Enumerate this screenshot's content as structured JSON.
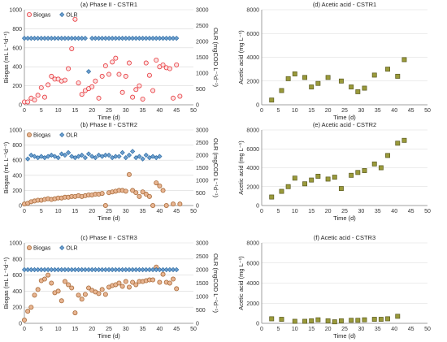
{
  "chart_data": [
    {
      "type": "scatter",
      "title": "(a) Phase II - CSTR1",
      "xlabel": "Time (d)",
      "ylabel": "Biogas (mL L⁻¹d⁻¹)",
      "y2label": "OLR (mgCOD L⁻¹d⁻¹)",
      "xlim": [
        0,
        50
      ],
      "ylim": [
        0,
        1000
      ],
      "y2lim": [
        0,
        3000
      ],
      "xticks": [
        0,
        5,
        10,
        15,
        20,
        25,
        30,
        35,
        40,
        45,
        50
      ],
      "yticks": [
        0,
        200,
        400,
        600,
        800,
        1000
      ],
      "y2ticks": [
        0,
        500,
        1000,
        1500,
        2000,
        2500,
        3000
      ],
      "legend": "top-left",
      "series": [
        {
          "name": "Biogas",
          "axis": "left",
          "marker": "circle",
          "color": "#e8383d",
          "fill": "#fbe1e1",
          "x": [
            0,
            1,
            2,
            3,
            4,
            5,
            6,
            7,
            8,
            9,
            10,
            11,
            12,
            13,
            14,
            15,
            16,
            17,
            18,
            19,
            20,
            21,
            22,
            23,
            24,
            25,
            26,
            27,
            28,
            29,
            30,
            31,
            32,
            33,
            34,
            35,
            36,
            37,
            38,
            39,
            40,
            41,
            42,
            43,
            44,
            45,
            46
          ],
          "y": [
            30,
            30,
            70,
            50,
            100,
            180,
            80,
            210,
            300,
            270,
            270,
            250,
            260,
            380,
            590,
            900,
            230,
            110,
            150,
            170,
            190,
            250,
            70,
            300,
            410,
            320,
            450,
            490,
            320,
            130,
            300,
            440,
            80,
            160,
            200,
            60,
            440,
            310,
            150,
            470,
            400,
            420,
            390,
            380,
            70,
            420,
            90
          ]
        },
        {
          "name": "OLR",
          "axis": "right",
          "marker": "diamond",
          "color": "#2e6da4",
          "fill": "#6fa0d0",
          "x": [
            0,
            1,
            2,
            3,
            4,
            5,
            6,
            7,
            8,
            9,
            10,
            11,
            12,
            13,
            14,
            15,
            16,
            17,
            18,
            19,
            20,
            21,
            22,
            23,
            24,
            25,
            26,
            27,
            28,
            29,
            30,
            31,
            32,
            33,
            34,
            35,
            36,
            37,
            38,
            39,
            40,
            41,
            42,
            43,
            44,
            45
          ],
          "y": [
            2100,
            2100,
            2100,
            2100,
            2100,
            2100,
            2100,
            2100,
            2100,
            2100,
            2100,
            2100,
            2100,
            2100,
            2100,
            2100,
            2100,
            2100,
            2100,
            1050,
            2100,
            2100,
            2100,
            2100,
            2100,
            2100,
            2100,
            2100,
            2100,
            2100,
            2100,
            2100,
            2100,
            2100,
            2100,
            2100,
            2100,
            2100,
            2100,
            2100,
            2100,
            2100,
            2100,
            2100,
            2100,
            2100
          ]
        }
      ]
    },
    {
      "type": "scatter",
      "title": "(d) Acetic acid - CSTR1",
      "xlabel": "Time (d)",
      "ylabel": "Acetic acid (mg L⁻¹)",
      "xlim": [
        0,
        50
      ],
      "ylim": [
        0,
        8000
      ],
      "xticks": [
        0,
        5,
        10,
        15,
        20,
        25,
        30,
        35,
        40,
        45,
        50
      ],
      "yticks": [
        0,
        2000,
        4000,
        6000,
        8000
      ],
      "series": [
        {
          "name": "",
          "marker": "square",
          "color": "#5a5a20",
          "fill": "#9a9a3a",
          "x": [
            3,
            6,
            8,
            10,
            13,
            15,
            17,
            20,
            24,
            27,
            29,
            31,
            34,
            38,
            41,
            43
          ],
          "y": [
            400,
            1200,
            2200,
            2600,
            2300,
            1500,
            1800,
            2300,
            2000,
            1500,
            1100,
            1400,
            2500,
            3000,
            2400,
            3800
          ]
        }
      ]
    },
    {
      "type": "scatter",
      "title": "(b) Phase II - CSTR2",
      "xlabel": "Time (d)",
      "ylabel": "Biogas (mL L⁻¹d⁻¹)",
      "y2label": "OLR (mgCOD L⁻¹d⁻¹)",
      "xlim": [
        0,
        50
      ],
      "ylim": [
        0,
        1000
      ],
      "y2lim": [
        0,
        3000
      ],
      "xticks": [
        0,
        5,
        10,
        15,
        20,
        25,
        30,
        35,
        40,
        45,
        50
      ],
      "yticks": [
        0,
        200,
        400,
        600,
        800,
        1000
      ],
      "y2ticks": [
        0,
        500,
        1000,
        1500,
        2000,
        2500,
        3000
      ],
      "legend": "top-left",
      "series": [
        {
          "name": "Biogas",
          "axis": "left",
          "marker": "circle",
          "color": "#a86b3a",
          "fill": "#e8b592",
          "x": [
            0,
            1,
            2,
            3,
            4,
            5,
            6,
            7,
            8,
            9,
            10,
            11,
            12,
            13,
            14,
            15,
            16,
            17,
            18,
            19,
            20,
            21,
            22,
            23,
            24,
            25,
            26,
            27,
            28,
            29,
            30,
            31,
            32,
            33,
            34,
            35,
            36,
            37,
            38,
            39,
            40,
            41,
            42,
            44,
            46
          ],
          "y": [
            20,
            30,
            50,
            60,
            70,
            70,
            80,
            90,
            80,
            90,
            100,
            100,
            110,
            110,
            120,
            120,
            130,
            120,
            130,
            140,
            140,
            150,
            150,
            160,
            0,
            170,
            180,
            190,
            200,
            200,
            190,
            410,
            200,
            170,
            120,
            180,
            150,
            120,
            0,
            300,
            260,
            200,
            0,
            20,
            20
          ]
        },
        {
          "name": "OLR",
          "axis": "right",
          "marker": "diamond",
          "color": "#2e6da4",
          "fill": "#6fa0d0",
          "x": [
            1,
            2,
            3,
            4,
            5,
            6,
            7,
            8,
            9,
            10,
            11,
            12,
            13,
            14,
            15,
            16,
            17,
            18,
            19,
            20,
            21,
            22,
            23,
            24,
            25,
            26,
            27,
            28,
            29,
            30,
            31,
            32,
            33,
            34,
            35,
            36,
            37,
            38,
            39,
            40
          ],
          "y": [
            1850,
            2000,
            1950,
            1900,
            1950,
            1900,
            1950,
            2000,
            1950,
            1900,
            2050,
            2000,
            2100,
            1950,
            1900,
            1950,
            2000,
            1900,
            2050,
            1950,
            1900,
            2000,
            1950,
            2000,
            2000,
            1900,
            1950,
            1950,
            2100,
            1900,
            2000,
            2150,
            1900,
            1950,
            1850,
            2000,
            1900,
            1950,
            1900,
            1950
          ]
        }
      ]
    },
    {
      "type": "scatter",
      "title": "(e) Acetic acid - CSTR2",
      "xlabel": "Time (d)",
      "ylabel": "Acetic acid (mg L⁻¹)",
      "xlim": [
        0,
        50
      ],
      "ylim": [
        0,
        8000
      ],
      "xticks": [
        0,
        5,
        10,
        15,
        20,
        25,
        30,
        35,
        40,
        45,
        50
      ],
      "yticks": [
        0,
        2000,
        4000,
        6000,
        8000
      ],
      "series": [
        {
          "name": "",
          "marker": "square",
          "color": "#5a5a20",
          "fill": "#9a9a3a",
          "x": [
            3,
            6,
            8,
            10,
            13,
            15,
            17,
            20,
            22,
            24,
            27,
            29,
            31,
            34,
            36,
            38,
            41,
            43
          ],
          "y": [
            900,
            1500,
            2000,
            2900,
            2300,
            2700,
            3100,
            2800,
            3000,
            1800,
            3200,
            3500,
            3700,
            4400,
            4000,
            5300,
            6600,
            6900
          ]
        }
      ]
    },
    {
      "type": "scatter",
      "title": "(c) Phase II - CSTR3",
      "xlabel": "Time (d)",
      "ylabel": "Biogas (mL L⁻¹d⁻¹)",
      "y2label": "OLR (mgCOD L⁻¹d⁻¹)",
      "xlim": [
        0,
        50
      ],
      "ylim": [
        0,
        1000
      ],
      "y2lim": [
        0,
        3000
      ],
      "xticks": [
        0,
        5,
        10,
        15,
        20,
        25,
        30,
        35,
        40,
        45,
        50
      ],
      "yticks": [
        0,
        200,
        400,
        600,
        800,
        1000
      ],
      "y2ticks": [
        0,
        500,
        1000,
        1500,
        2000,
        2500,
        3000
      ],
      "legend": "top-left",
      "series": [
        {
          "name": "Biogas",
          "axis": "left",
          "marker": "circle",
          "color": "#a86b3a",
          "fill": "#e8b592",
          "x": [
            0,
            1,
            2,
            3,
            4,
            5,
            6,
            7,
            8,
            9,
            10,
            11,
            12,
            13,
            14,
            15,
            16,
            17,
            18,
            19,
            20,
            21,
            22,
            23,
            24,
            25,
            26,
            27,
            28,
            29,
            30,
            31,
            32,
            33,
            34,
            35,
            36,
            37,
            38,
            39,
            40,
            41,
            42,
            43,
            44,
            45
          ],
          "y": [
            40,
            150,
            200,
            350,
            420,
            530,
            550,
            600,
            500,
            380,
            400,
            280,
            520,
            480,
            440,
            130,
            350,
            300,
            360,
            440,
            410,
            390,
            370,
            420,
            360,
            450,
            470,
            480,
            500,
            460,
            520,
            450,
            510,
            480,
            520,
            520,
            530,
            540,
            540,
            700,
            510,
            610,
            510,
            500,
            550,
            430
          ]
        },
        {
          "name": "OLR",
          "axis": "right",
          "marker": "diamond",
          "color": "#2e6da4",
          "fill": "#6fa0d0",
          "x": [
            0,
            1,
            2,
            3,
            4,
            5,
            6,
            7,
            8,
            9,
            10,
            11,
            12,
            13,
            14,
            15,
            16,
            17,
            18,
            19,
            20,
            21,
            22,
            23,
            24,
            25,
            26,
            27,
            28,
            29,
            30,
            31,
            32,
            33,
            34,
            35,
            36,
            37,
            38,
            39,
            40,
            41,
            42,
            43,
            44,
            45
          ],
          "y": [
            2000,
            2000,
            2000,
            2000,
            2000,
            2000,
            2000,
            2000,
            2000,
            2000,
            2000,
            2000,
            2000,
            2000,
            2000,
            2000,
            2000,
            2000,
            2000,
            2000,
            2000,
            2000,
            2000,
            2000,
            2000,
            2000,
            2000,
            2000,
            2000,
            2000,
            2000,
            2000,
            2000,
            2000,
            2000,
            2000,
            2000,
            2000,
            2000,
            2000,
            2000,
            2000,
            2000,
            2000,
            2000,
            2000
          ]
        }
      ]
    },
    {
      "type": "scatter",
      "title": "(f) Acetic acid - CSTR3",
      "xlabel": "Time (d)",
      "ylabel": "Acetic acid (mg L⁻¹)",
      "xlim": [
        0,
        50
      ],
      "ylim": [
        0,
        8000
      ],
      "xticks": [
        0,
        5,
        10,
        15,
        20,
        25,
        30,
        35,
        40,
        45,
        50
      ],
      "yticks": [
        0,
        2000,
        4000,
        6000,
        8000
      ],
      "series": [
        {
          "name": "",
          "marker": "square",
          "color": "#5a5a20",
          "fill": "#9a9a3a",
          "x": [
            3,
            6,
            10,
            13,
            15,
            17,
            20,
            22,
            24,
            27,
            29,
            31,
            34,
            36,
            38,
            41
          ],
          "y": [
            450,
            400,
            200,
            200,
            250,
            350,
            250,
            150,
            250,
            300,
            300,
            350,
            400,
            400,
            450,
            700
          ]
        }
      ]
    }
  ]
}
